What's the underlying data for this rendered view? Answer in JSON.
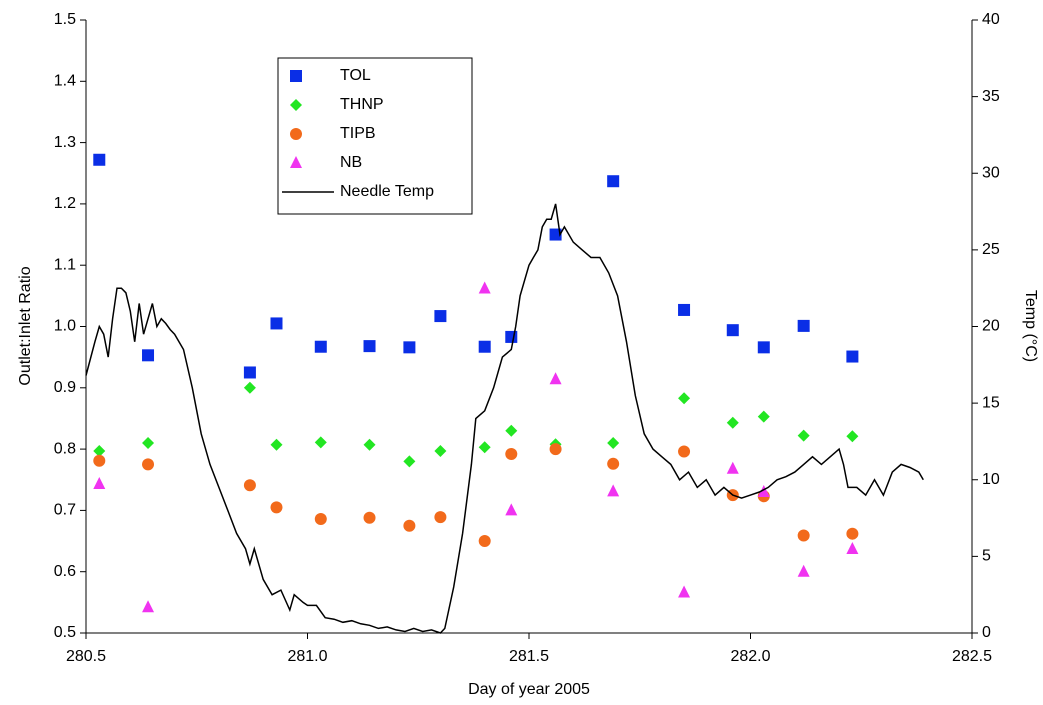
{
  "chart_data": {
    "type": "scatter",
    "xlabel": "Day of year 2005",
    "ylabel": "Outlet:Inlet Ratio",
    "y2label": "Temp (°C)",
    "xlim": [
      280.5,
      282.5
    ],
    "xticks": [
      280.5,
      {
        "value": 281,
        "label": "281.0"
      },
      281.5,
      {
        "value": 282,
        "label": "282.0"
      },
      282.5
    ],
    "ylim": [
      0.5,
      1.5
    ],
    "yticks": [
      0.5,
      0.6,
      0.7,
      0.8,
      0.9,
      {
        "value": 1,
        "label": "1.0"
      },
      1.1,
      1.2,
      1.3,
      1.4,
      {
        "value": 1.5,
        "label": "1.5"
      }
    ],
    "y2lim": [
      0,
      40
    ],
    "y2ticks": [
      0,
      5,
      10,
      15,
      20,
      25,
      30,
      35,
      40
    ],
    "grid": false,
    "legend": "upper left",
    "series": [
      {
        "name": "TOL",
        "color": "#0a2ee6",
        "marker": "square",
        "x": [
          280.53,
          280.64,
          280.87,
          280.93,
          281.03,
          281.14,
          281.23,
          281.3,
          281.4,
          281.46,
          281.56,
          281.69,
          281.85,
          281.96,
          282.03,
          282.12,
          282.23
        ],
        "values": [
          1.272,
          0.953,
          0.925,
          1.005,
          0.967,
          0.968,
          0.966,
          1.017,
          0.967,
          0.983,
          1.15,
          1.237,
          1.027,
          0.994,
          0.966,
          1.001,
          0.951
        ]
      },
      {
        "name": "THNP",
        "color": "#22e622",
        "marker": "diamond",
        "x": [
          280.53,
          280.64,
          280.87,
          280.93,
          281.03,
          281.14,
          281.23,
          281.3,
          281.4,
          281.46,
          281.56,
          281.69,
          281.85,
          281.96,
          282.03,
          282.12,
          282.23
        ],
        "values": [
          0.797,
          0.81,
          0.9,
          0.807,
          0.811,
          0.807,
          0.78,
          0.797,
          0.803,
          0.83,
          0.808,
          0.81,
          0.883,
          0.843,
          0.853,
          0.822,
          0.821
        ]
      },
      {
        "name": "TIPB",
        "color": "#f26a1b",
        "marker": "circle",
        "x": [
          280.53,
          280.64,
          280.87,
          280.93,
          281.03,
          281.14,
          281.23,
          281.3,
          281.4,
          281.46,
          281.56,
          281.69,
          281.85,
          281.96,
          282.03,
          282.12,
          282.23
        ],
        "values": [
          0.781,
          0.775,
          0.741,
          0.705,
          0.686,
          0.688,
          0.675,
          0.689,
          0.65,
          0.792,
          0.8,
          0.776,
          0.796,
          0.725,
          0.723,
          0.659,
          0.662
        ]
      },
      {
        "name": "NB",
        "color": "#f033f0",
        "marker": "triangle",
        "x": [
          280.53,
          280.64,
          281.4,
          281.46,
          281.56,
          281.69,
          281.85,
          281.96,
          282.03,
          282.12,
          282.23
        ],
        "values": [
          0.743,
          0.542,
          1.062,
          0.7,
          0.914,
          0.731,
          0.566,
          0.768,
          0.73,
          0.6,
          0.637
        ]
      },
      {
        "name": "Needle Temp",
        "color": "#000000",
        "type": "line",
        "axis": "y2",
        "x": [
          280.5,
          280.52,
          280.53,
          280.54,
          280.55,
          280.56,
          280.57,
          280.58,
          280.59,
          280.6,
          280.61,
          280.62,
          280.63,
          280.64,
          280.65,
          280.66,
          280.67,
          280.68,
          280.69,
          280.7,
          280.72,
          280.74,
          280.76,
          280.78,
          280.8,
          280.82,
          280.84,
          280.86,
          280.87,
          280.88,
          280.9,
          280.92,
          280.94,
          280.96,
          280.97,
          280.99,
          281.0,
          281.02,
          281.04,
          281.06,
          281.08,
          281.1,
          281.12,
          281.14,
          281.16,
          281.18,
          281.2,
          281.22,
          281.24,
          281.26,
          281.28,
          281.3,
          281.31,
          281.33,
          281.35,
          281.37,
          281.38,
          281.4,
          281.42,
          281.44,
          281.46,
          281.47,
          281.48,
          281.5,
          281.51,
          281.52,
          281.53,
          281.54,
          281.55,
          281.56,
          281.57,
          281.58,
          281.6,
          281.62,
          281.64,
          281.66,
          281.68,
          281.7,
          281.72,
          281.74,
          281.76,
          281.78,
          281.8,
          281.82,
          281.84,
          281.86,
          281.88,
          281.9,
          281.92,
          281.94,
          281.96,
          281.98,
          282.0,
          282.02,
          282.04,
          282.06,
          282.08,
          282.1,
          282.12,
          282.14,
          282.16,
          282.18,
          282.2,
          282.21,
          282.22,
          282.24,
          282.26,
          282.28,
          282.3,
          282.32,
          282.34,
          282.36,
          282.38,
          282.39
        ],
        "values": [
          16.8,
          19,
          20,
          19.5,
          18,
          20.5,
          22.5,
          22.5,
          22.2,
          21,
          19,
          21.5,
          19.5,
          20.5,
          21.5,
          20,
          20.5,
          20.2,
          19.8,
          19.5,
          18.5,
          16,
          13,
          11,
          9.5,
          8,
          6.5,
          5.5,
          4.5,
          5.5,
          3.5,
          2.5,
          2.8,
          1.5,
          2.5,
          2,
          1.8,
          1.8,
          1,
          0.9,
          0.7,
          0.8,
          0.6,
          0.5,
          0.3,
          0.4,
          0.2,
          0.1,
          0.3,
          0.1,
          0.2,
          0,
          0.3,
          3,
          6.5,
          11,
          14,
          14.5,
          16,
          18,
          18.5,
          20,
          22,
          24,
          24.5,
          25,
          26.5,
          27,
          27,
          28,
          26,
          26.5,
          25.5,
          25,
          24.5,
          24.5,
          23.5,
          22,
          19,
          15.5,
          13,
          12,
          11.5,
          11,
          10,
          10.5,
          9.5,
          10,
          9,
          9.5,
          9,
          8.8,
          9,
          9.2,
          9.5,
          10,
          10.2,
          10.5,
          11,
          11.5,
          11,
          11.5,
          12,
          11,
          9.5,
          9.5,
          9,
          10,
          9,
          10.5,
          11,
          10.8,
          10.5,
          10
        ]
      }
    ]
  }
}
